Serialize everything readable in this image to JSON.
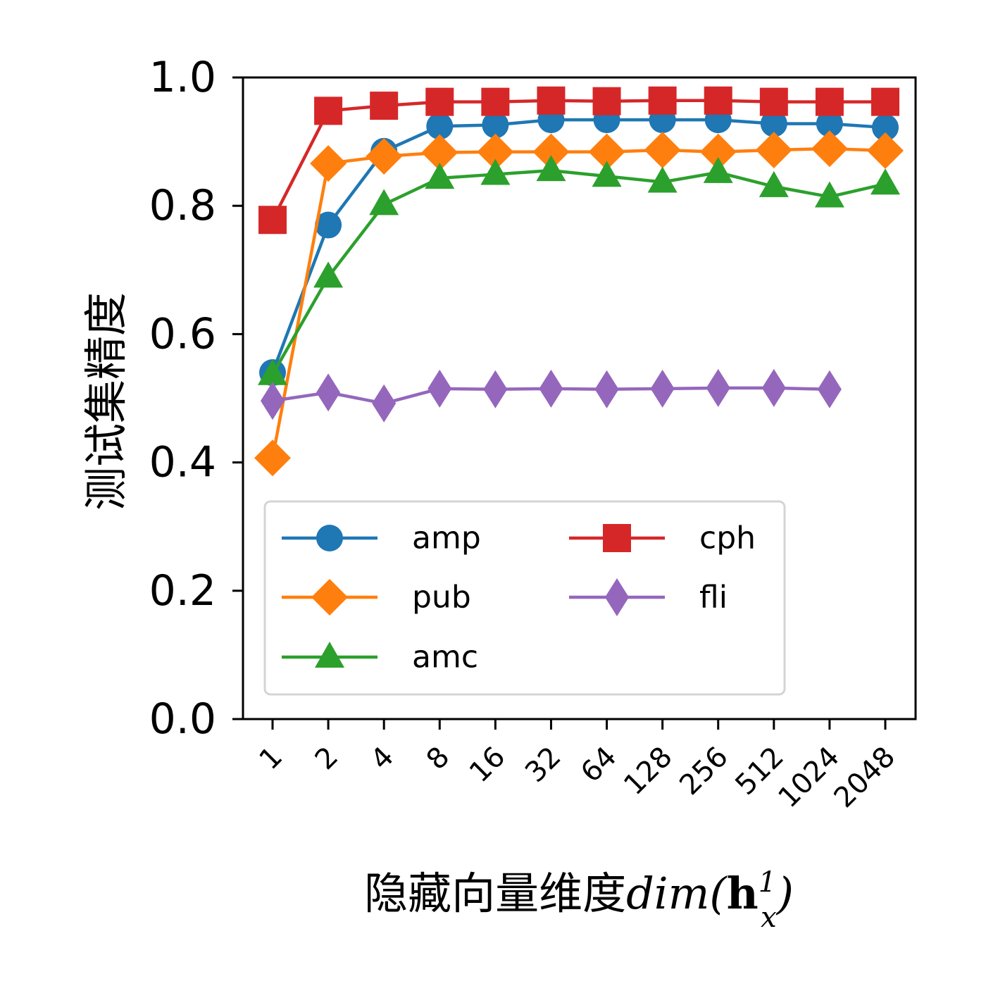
{
  "chart_data": {
    "type": "line",
    "xlabel_text": "隐藏向量维度",
    "xlabel_math": {
      "prefix": "dim(",
      "bold": "h",
      "superscript": "1",
      "subscript": "x",
      "suffix": ")"
    },
    "ylabel": "测试集精度",
    "categories": [
      "1",
      "2",
      "4",
      "8",
      "16",
      "32",
      "64",
      "128",
      "256",
      "512",
      "1024",
      "2048"
    ],
    "ylim": [
      0.0,
      1.0
    ],
    "yticks": [
      "0.0",
      "0.2",
      "0.4",
      "0.6",
      "0.8",
      "1.0"
    ],
    "grid": false,
    "legend_position": "lower-left, two columns",
    "series": [
      {
        "name": "amp",
        "color": "#1f77b4",
        "marker": "circle",
        "values": [
          0.54,
          0.77,
          0.885,
          0.924,
          0.926,
          0.934,
          0.934,
          0.934,
          0.934,
          0.928,
          0.928,
          0.922
        ]
      },
      {
        "name": "pub",
        "color": "#ff7f0e",
        "marker": "diamond",
        "values": [
          0.407,
          0.866,
          0.877,
          0.883,
          0.884,
          0.884,
          0.884,
          0.887,
          0.884,
          0.887,
          0.889,
          0.886
        ]
      },
      {
        "name": "amc",
        "color": "#2ca02c",
        "marker": "triangle",
        "values": [
          0.537,
          0.689,
          0.802,
          0.843,
          0.849,
          0.855,
          0.846,
          0.837,
          0.852,
          0.83,
          0.814,
          0.834
        ]
      },
      {
        "name": "cph",
        "color": "#d62728",
        "marker": "square",
        "values": [
          0.778,
          0.948,
          0.956,
          0.962,
          0.962,
          0.964,
          0.963,
          0.964,
          0.964,
          0.962,
          0.962,
          0.962
        ]
      },
      {
        "name": "fli",
        "color": "#9467bd",
        "marker": "thin_diamond",
        "values": [
          0.496,
          0.509,
          0.492,
          0.515,
          0.514,
          0.515,
          0.514,
          0.515,
          0.516,
          0.516,
          0.514,
          null
        ]
      }
    ]
  }
}
